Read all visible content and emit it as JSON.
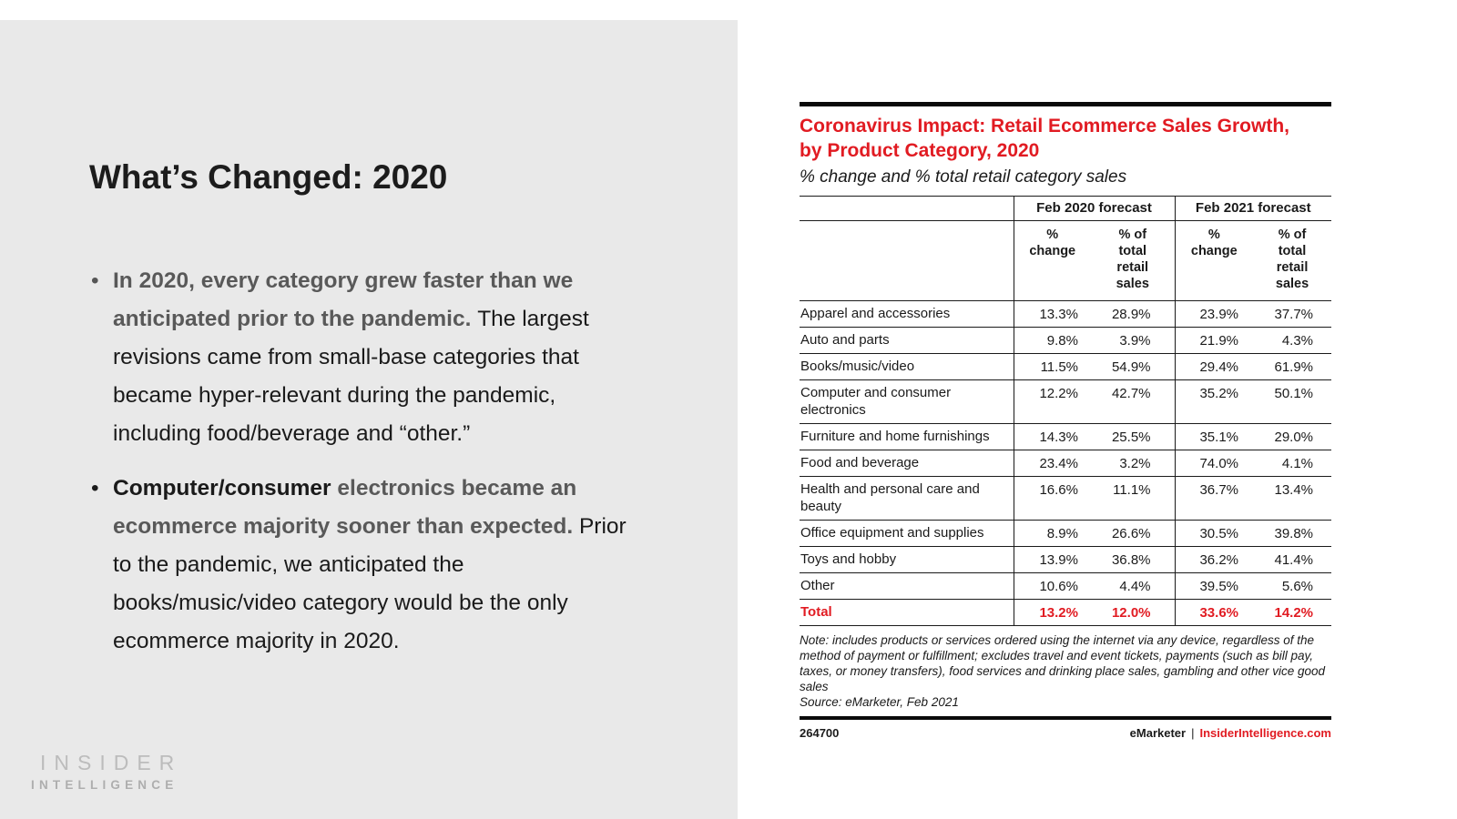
{
  "slide": {
    "title": "What’s Changed: 2020",
    "bullets": [
      {
        "segments": [
          {
            "text": "In 2020, every category grew faster than we anticipated prior to the pandemic. ",
            "style": "bold-gray"
          },
          {
            "text": "The largest revisions came from small-base categories that became hyper-relevant during the pandemic, including food/beverage and “other.”",
            "style": "regular"
          }
        ]
      },
      {
        "segments": [
          {
            "text": "Computer/consumer ",
            "style": "bold-black"
          },
          {
            "text": "electronics became an ecommerce majority sooner than expected. ",
            "style": "bold-gray"
          },
          {
            "text": "Prior to the pandemic, we anticipated the books/music/video category would be the only ecommerce majority in 2020.",
            "style": "regular"
          }
        ]
      }
    ],
    "logo": {
      "line1": "INSIDER",
      "line2": "INTELLIGENCE"
    }
  },
  "chart": {
    "title": "Coronavirus Impact: Retail Ecommerce Sales Growth, by Product Category, 2020",
    "subtitle": "% change and % total retail category sales",
    "note": "Note: includes products or services ordered using the internet via any device, regardless of the method of payment or fulfillment; excludes travel and event tickets, payments (such as bill pay, taxes, or money transfers), food services and drinking place sales, gambling and other vice good sales",
    "source": "Source: eMarketer, Feb 2021",
    "footer": {
      "id": "264700",
      "brand": "eMarketer",
      "separator": "|",
      "site": "InsiderIntelligence.com"
    },
    "colors": {
      "accent_red": "#e11b22",
      "panel_gray": "#e9e9e9",
      "line_black": "#1a1a1a"
    }
  },
  "chart_data": {
    "type": "table",
    "title": "Coronavirus Impact: Retail Ecommerce Sales Growth, by Product Category, 2020",
    "subtitle": "% change and % total retail category sales",
    "column_groups": [
      "Feb 2020 forecast",
      "Feb 2021 forecast"
    ],
    "columns": [
      "% change",
      "% of total retail sales",
      "% change",
      "% of total retail sales"
    ],
    "rows": [
      {
        "category": "Apparel and accessories",
        "values": [
          "13.3%",
          "28.9%",
          "23.9%",
          "37.7%"
        ],
        "total": false
      },
      {
        "category": "Auto and parts",
        "values": [
          "9.8%",
          "3.9%",
          "21.9%",
          "4.3%"
        ],
        "total": false
      },
      {
        "category": "Books/music/video",
        "values": [
          "11.5%",
          "54.9%",
          "29.4%",
          "61.9%"
        ],
        "total": false
      },
      {
        "category": "Computer and consumer electronics",
        "values": [
          "12.2%",
          "42.7%",
          "35.2%",
          "50.1%"
        ],
        "total": false
      },
      {
        "category": "Furniture and home furnishings",
        "values": [
          "14.3%",
          "25.5%",
          "35.1%",
          "29.0%"
        ],
        "total": false
      },
      {
        "category": "Food and beverage",
        "values": [
          "23.4%",
          "3.2%",
          "74.0%",
          "4.1%"
        ],
        "total": false
      },
      {
        "category": "Health and personal care and beauty",
        "values": [
          "16.6%",
          "11.1%",
          "36.7%",
          "13.4%"
        ],
        "total": false
      },
      {
        "category": "Office equipment and supplies",
        "values": [
          "8.9%",
          "26.6%",
          "30.5%",
          "39.8%"
        ],
        "total": false
      },
      {
        "category": "Toys and hobby",
        "values": [
          "13.9%",
          "36.8%",
          "36.2%",
          "41.4%"
        ],
        "total": false
      },
      {
        "category": "Other",
        "values": [
          "10.6%",
          "4.4%",
          "39.5%",
          "5.6%"
        ],
        "total": false
      },
      {
        "category": "Total",
        "values": [
          "13.2%",
          "12.0%",
          "33.6%",
          "14.2%"
        ],
        "total": true
      }
    ]
  }
}
